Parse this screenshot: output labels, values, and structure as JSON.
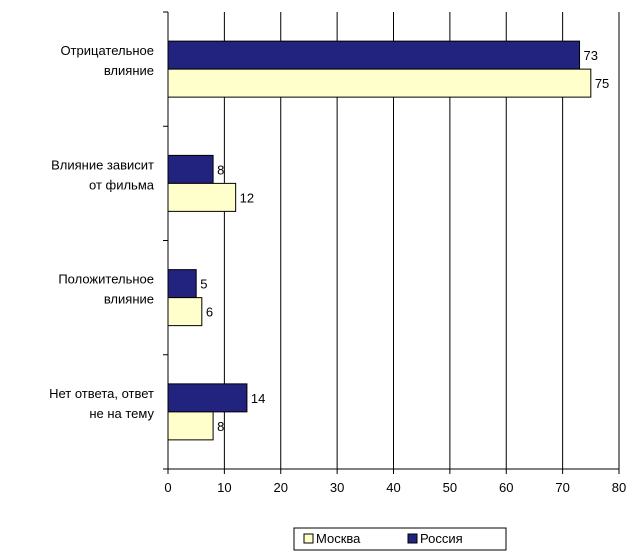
{
  "chart_data": {
    "type": "bar",
    "orientation": "horizontal",
    "categories": [
      [
        "Отрицательное",
        "влияние"
      ],
      [
        "Влияние зависит",
        "от фильма"
      ],
      [
        "Положительное",
        "влияние"
      ],
      [
        "Нет ответа, ответ",
        "не на тему"
      ]
    ],
    "series": [
      {
        "name": "Россия",
        "values": [
          73,
          8,
          5,
          14
        ],
        "color": "#22227f"
      },
      {
        "name": "Москва",
        "values": [
          75,
          12,
          6,
          8
        ],
        "color": "#ffffcc"
      }
    ],
    "xlim": [
      0,
      80
    ],
    "xticks": [
      0,
      10,
      20,
      30,
      40,
      50,
      60,
      70,
      80
    ],
    "grid": "vertical",
    "legend": {
      "placement": "bottom",
      "entries": [
        {
          "label": "Москва",
          "color": "#ffffcc"
        },
        {
          "label": "Россия",
          "color": "#22227f"
        }
      ]
    },
    "title": "",
    "xlabel": "",
    "ylabel": ""
  }
}
